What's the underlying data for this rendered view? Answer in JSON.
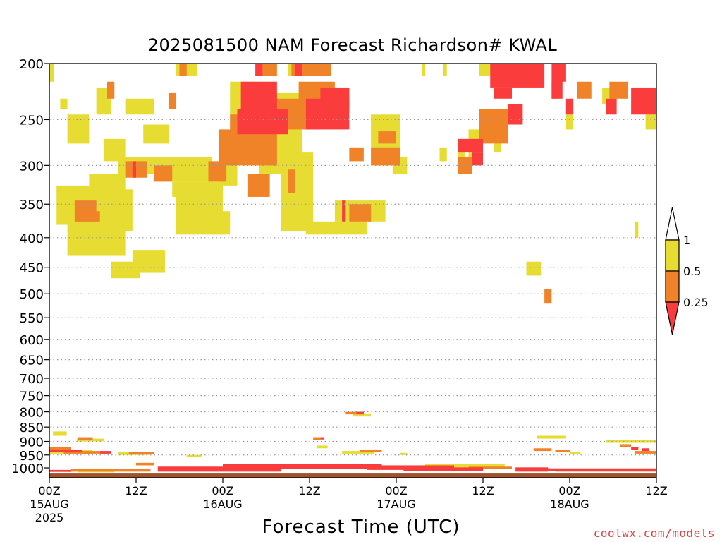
{
  "chart_data": {
    "type": "heatmap",
    "title": "2025081500 NAM Forecast Richardson# KWAL",
    "xlabel": "Forecast Time (UTC)",
    "credit": "coolwx.com/models",
    "x_range_hours": [
      0,
      84
    ],
    "x_ticks": [
      {
        "h": 0,
        "label": "00Z",
        "date": "15AUG",
        "year": "2025"
      },
      {
        "h": 12,
        "label": "12Z"
      },
      {
        "h": 24,
        "label": "00Z",
        "date": "16AUG"
      },
      {
        "h": 36,
        "label": "12Z"
      },
      {
        "h": 48,
        "label": "00Z",
        "date": "17AUG"
      },
      {
        "h": 60,
        "label": "12Z"
      },
      {
        "h": 72,
        "label": "00Z",
        "date": "18AUG"
      },
      {
        "h": 84,
        "label": "12Z"
      }
    ],
    "y_ticks": [
      "200",
      "250",
      "300",
      "350",
      "400",
      "450",
      "500",
      "550",
      "600",
      "650",
      "700",
      "750",
      "800",
      "850",
      "900",
      "950",
      "1000"
    ],
    "y_range_hpa": [
      200,
      1040
    ],
    "colorbar": {
      "labels": [
        "1",
        "0.5",
        "0.25"
      ],
      "bins": [
        {
          "range": "0.5-1",
          "color": "#e6dc32"
        },
        {
          "range": "0.25-0.5",
          "color": "#f08228"
        },
        {
          "range": "<0.25",
          "color": "#fa3c3c"
        }
      ]
    },
    "ground_color": "#a0522d",
    "regions": [
      {
        "cls": 1,
        "rects": [
          [
            0.0,
            200,
            0.6,
            215
          ],
          [
            1.5,
            230,
            2.5,
            240
          ],
          [
            2.5,
            245,
            5.5,
            275
          ],
          [
            6.5,
            220,
            8.5,
            245
          ],
          [
            7.5,
            270,
            10.5,
            295
          ],
          [
            10.5,
            230,
            14.5,
            245
          ],
          [
            13.0,
            255,
            16.5,
            275
          ],
          [
            9.5,
            290,
            14.5,
            310
          ],
          [
            14.5,
            290,
            22.5,
            320
          ],
          [
            17.0,
            320,
            22.5,
            340
          ],
          [
            5.5,
            310,
            10.5,
            350
          ],
          [
            1.0,
            325,
            5.5,
            380
          ],
          [
            4.5,
            330,
            11.5,
            390
          ],
          [
            2.5,
            380,
            10.5,
            430
          ],
          [
            11.5,
            420,
            16.0,
            460
          ],
          [
            8.5,
            440,
            12.5,
            470
          ],
          [
            17.5,
            320,
            24.0,
            395
          ],
          [
            22.5,
            360,
            25.0,
            395
          ],
          [
            17.5,
            200,
            20.5,
            210
          ],
          [
            25.0,
            215,
            29.0,
            260
          ],
          [
            23.5,
            295,
            26.0,
            325
          ],
          [
            27.5,
            225,
            35.0,
            300
          ],
          [
            29.0,
            290,
            36.5,
            310
          ],
          [
            32.0,
            285,
            36.5,
            390
          ],
          [
            35.5,
            375,
            44.0,
            395
          ],
          [
            39.5,
            345,
            46.5,
            375
          ],
          [
            44.5,
            245,
            48.5,
            300
          ],
          [
            47.5,
            290,
            49.5,
            310
          ],
          [
            33.0,
            200,
            34.5,
            210
          ],
          [
            51.5,
            200,
            52.0,
            210
          ],
          [
            54.5,
            200,
            55.0,
            210
          ],
          [
            54.0,
            280,
            55.0,
            295
          ],
          [
            56.5,
            280,
            57.5,
            310
          ],
          [
            58.0,
            260,
            59.5,
            295
          ],
          [
            59.5,
            200,
            61.5,
            210
          ],
          [
            61.5,
            260,
            62.5,
            285
          ],
          [
            66.0,
            440,
            68.0,
            465
          ],
          [
            76.5,
            220,
            78.5,
            235
          ],
          [
            71.5,
            245,
            72.5,
            260
          ],
          [
            82.5,
            245,
            84.0,
            260
          ],
          [
            81.0,
            375,
            81.5,
            400
          ]
        ]
      },
      {
        "cls": 2,
        "rects": [
          [
            3.5,
            345,
            6.5,
            375
          ],
          [
            4.0,
            360,
            7.0,
            375
          ],
          [
            8.0,
            215,
            9.0,
            230
          ],
          [
            10.5,
            295,
            13.5,
            315
          ],
          [
            16.5,
            225,
            17.5,
            240
          ],
          [
            14.5,
            300,
            17.0,
            320
          ],
          [
            22.0,
            295,
            24.5,
            320
          ],
          [
            18.0,
            200,
            19.0,
            210
          ],
          [
            25.0,
            245,
            27.0,
            275
          ],
          [
            23.5,
            260,
            31.5,
            300
          ],
          [
            33.0,
            305,
            34.0,
            335
          ],
          [
            27.5,
            310,
            30.5,
            340
          ],
          [
            30.0,
            230,
            37.5,
            260
          ],
          [
            34.5,
            215,
            39.5,
            245
          ],
          [
            33.5,
            200,
            39.0,
            210
          ],
          [
            29.0,
            200,
            31.5,
            210
          ],
          [
            41.5,
            350,
            44.5,
            375
          ],
          [
            41.5,
            280,
            43.5,
            295
          ],
          [
            44.5,
            280,
            48.5,
            300
          ],
          [
            45.5,
            262,
            48.0,
            275
          ],
          [
            56.5,
            290,
            58.5,
            310
          ],
          [
            59.5,
            240,
            63.5,
            275
          ],
          [
            69.5,
            215,
            70.5,
            230
          ],
          [
            73.0,
            215,
            75.0,
            230
          ],
          [
            77.5,
            215,
            80.0,
            230
          ],
          [
            68.5,
            490,
            69.5,
            520
          ]
        ]
      },
      {
        "cls": 3,
        "rects": [
          [
            11.5,
            295,
            12.0,
            315
          ],
          [
            26.5,
            215,
            31.5,
            245
          ],
          [
            26.0,
            240,
            33.0,
            265
          ],
          [
            28.5,
            200,
            29.5,
            210
          ],
          [
            34.0,
            200,
            35.0,
            210
          ],
          [
            35.5,
            230,
            41.5,
            260
          ],
          [
            37.5,
            220,
            41.5,
            240
          ],
          [
            40.5,
            345,
            41.0,
            375
          ],
          [
            56.5,
            270,
            60.0,
            285
          ],
          [
            58.5,
            285,
            60.0,
            300
          ],
          [
            61.0,
            200,
            68.5,
            220
          ],
          [
            61.5,
            220,
            64.0,
            230
          ],
          [
            63.5,
            235,
            65.5,
            255
          ],
          [
            69.5,
            200,
            71.0,
            230
          ],
          [
            70.0,
            200,
            71.5,
            215
          ],
          [
            71.5,
            230,
            72.5,
            245
          ],
          [
            77.0,
            230,
            78.5,
            245
          ],
          [
            80.5,
            220,
            84.0,
            245
          ]
        ]
      }
    ],
    "low_bands": [
      {
        "cls": 1,
        "segs": [
          [
            0.5,
            865,
            2.4,
            880
          ],
          [
            3.8,
            890,
            7.5,
            900
          ],
          [
            0.0,
            930,
            6.0,
            945
          ],
          [
            9.5,
            940,
            14.0,
            950
          ],
          [
            19.0,
            950,
            21.0,
            958
          ],
          [
            37.0,
            915,
            38.5,
            925
          ],
          [
            40.5,
            935,
            45.0,
            945
          ],
          [
            48.5,
            942,
            49.5,
            950
          ],
          [
            42.0,
            805,
            44.5,
            815
          ],
          [
            67.5,
            880,
            71.5,
            890
          ],
          [
            77.0,
            895,
            84.0,
            905
          ],
          [
            72.0,
            940,
            73.5,
            948
          ],
          [
            52.0,
            985,
            63.0,
            998
          ],
          [
            25.0,
            990,
            48.0,
            1000
          ],
          [
            4.0,
            1010,
            9.0,
            1018
          ]
        ]
      },
      {
        "cls": 2,
        "segs": [
          [
            4.0,
            885,
            6.0,
            895
          ],
          [
            0.0,
            920,
            3.0,
            935
          ],
          [
            2.0,
            935,
            7.0,
            945
          ],
          [
            11.0,
            940,
            14.5,
            948
          ],
          [
            36.5,
            885,
            37.5,
            895
          ],
          [
            41.0,
            800,
            43.5,
            808
          ],
          [
            43.0,
            930,
            46.0,
            940
          ],
          [
            67.0,
            925,
            69.5,
            935
          ],
          [
            70.0,
            930,
            72.0,
            940
          ],
          [
            79.0,
            910,
            80.5,
            920
          ],
          [
            81.0,
            935,
            84.0,
            945
          ],
          [
            3.0,
            1005,
            14.0,
            1015
          ],
          [
            58.0,
            995,
            64.0,
            1005
          ],
          [
            70.0,
            1005,
            84.0,
            1015
          ],
          [
            12.0,
            980,
            14.5,
            990
          ]
        ]
      },
      {
        "cls": 3,
        "segs": [
          [
            0.0,
            930,
            4.5,
            938
          ],
          [
            7.0,
            935,
            8.5,
            945
          ],
          [
            37.5,
            885,
            38.0,
            893
          ],
          [
            42.5,
            800,
            43.5,
            808
          ],
          [
            80.5,
            920,
            81.5,
            930
          ],
          [
            82.0,
            925,
            83.0,
            935
          ],
          [
            15.0,
            995,
            32.0,
            1015
          ],
          [
            24.0,
            985,
            46.0,
            1005
          ],
          [
            44.0,
            990,
            56.0,
            1008
          ],
          [
            49.0,
            998,
            60.0,
            1012
          ],
          [
            64.5,
            998,
            69.0,
            1015
          ],
          [
            65.0,
            1002,
            84.0,
            1012
          ],
          [
            0.0,
            1008,
            3.0,
            1016
          ]
        ]
      }
    ]
  }
}
